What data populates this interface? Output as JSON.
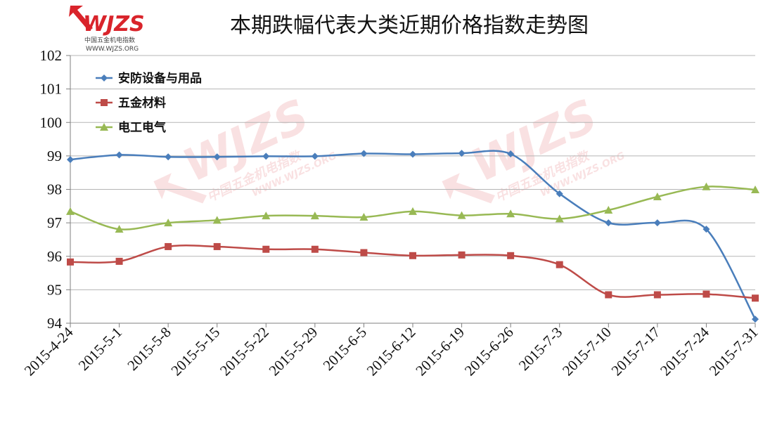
{
  "logo": {
    "brand": "WJZS",
    "subtitle": "中国五金机电指数",
    "url": "WWW.WJZS.ORG"
  },
  "chart_data": {
    "type": "line",
    "title": "本期跌幅代表大类近期价格指数走势图",
    "xlabel": "",
    "ylabel": "",
    "ylim": [
      94,
      102
    ],
    "yticks": [
      94,
      95,
      96,
      97,
      98,
      99,
      100,
      101,
      102
    ],
    "grid": true,
    "legend_position": "top-left",
    "categories": [
      "2015-4-24",
      "2015-5-1",
      "2015-5-8",
      "2015-5-15",
      "2015-5-22",
      "2015-5-29",
      "2015-6-5",
      "2015-6-12",
      "2015-6-19",
      "2015-6-26",
      "2015-7-3",
      "2015-7-10",
      "2015-7-17",
      "2015-7-24",
      "2015-7-31"
    ],
    "series": [
      {
        "name": "安防设备与用品",
        "color": "#4a7ebb",
        "marker": "diamond",
        "values": [
          98.89,
          99.03,
          98.97,
          98.97,
          98.99,
          98.99,
          99.07,
          99.05,
          99.08,
          99.06,
          97.87,
          97.0,
          97.0,
          96.81,
          94.12
        ]
      },
      {
        "name": "五金材料",
        "color": "#be4b48",
        "marker": "square",
        "values": [
          95.83,
          95.85,
          96.29,
          96.29,
          96.21,
          96.21,
          96.11,
          96.02,
          96.04,
          96.02,
          95.75,
          94.85,
          94.85,
          94.87,
          94.75
        ]
      },
      {
        "name": "电工电气",
        "color": "#98b954",
        "marker": "triangle",
        "values": [
          97.34,
          96.81,
          97.0,
          97.08,
          97.21,
          97.21,
          97.17,
          97.34,
          97.22,
          97.27,
          97.12,
          97.38,
          97.78,
          98.08,
          97.99
        ]
      }
    ]
  }
}
